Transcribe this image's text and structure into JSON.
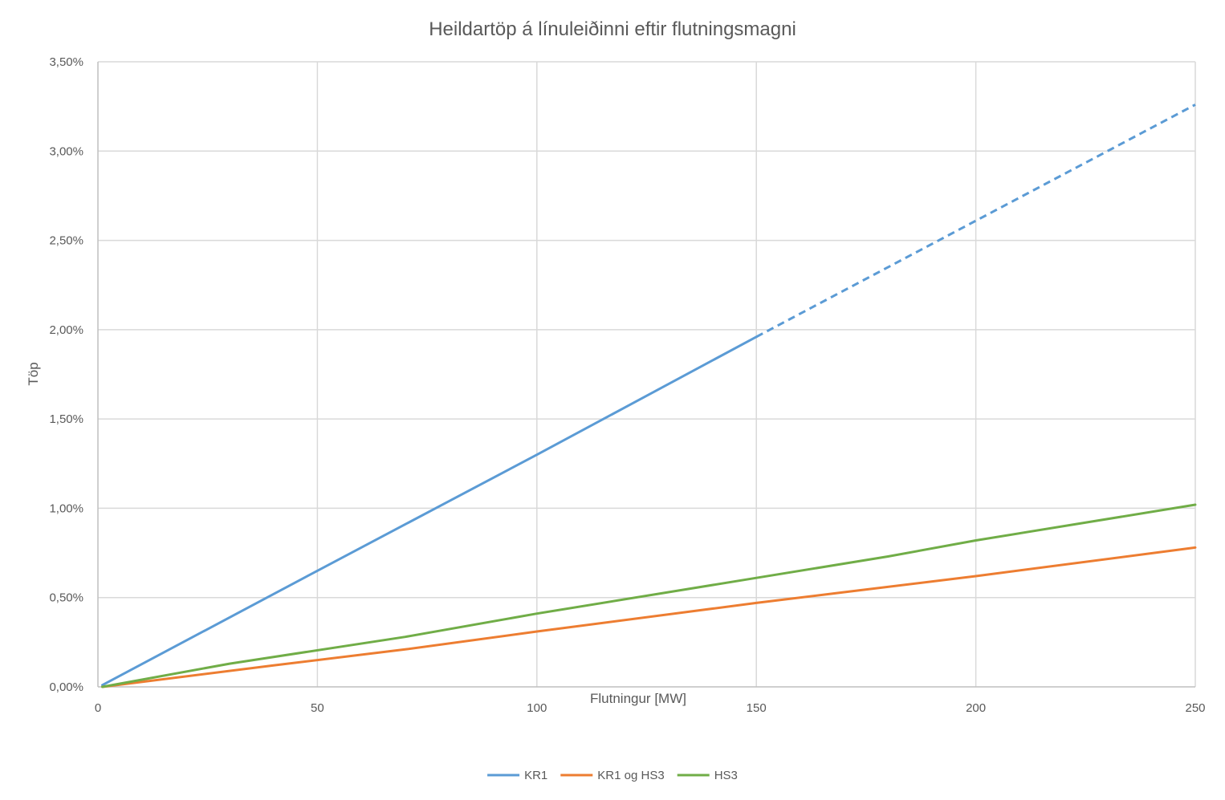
{
  "chart_data": {
    "type": "line",
    "title": "Heildartöp á línuleiðinni eftir flutningsmagni",
    "xlabel": "Flutningur [MW]",
    "ylabel": "Töp",
    "xlim": [
      0,
      250
    ],
    "ylim": [
      0,
      0.035
    ],
    "x_ticks": [
      0,
      50,
      100,
      150,
      200,
      250
    ],
    "x_tick_labels": [
      "0",
      "50",
      "100",
      "150",
      "200",
      "250"
    ],
    "y_ticks": [
      0,
      0.005,
      0.01,
      0.015,
      0.02,
      0.025,
      0.03,
      0.035
    ],
    "y_tick_labels": [
      "0,00%",
      "0,50%",
      "1,00%",
      "1,50%",
      "2,00%",
      "2,50%",
      "3,00%",
      "3,50%"
    ],
    "grid": true,
    "legend_position": "bottom",
    "series": [
      {
        "name": "KR1",
        "color": "#5b9bd5",
        "points": [
          [
            1,
            0.0001
          ],
          [
            50,
            0.0065
          ],
          [
            100,
            0.013
          ],
          [
            150,
            0.0196
          ]
        ],
        "extrapolated_points": [
          [
            150,
            0.0196
          ],
          [
            200,
            0.0261
          ],
          [
            250,
            0.0326
          ]
        ]
      },
      {
        "name": "KR1 og HS3",
        "color": "#ed7d31",
        "points": [
          [
            1,
            0.0
          ],
          [
            40,
            0.0012
          ],
          [
            70,
            0.0021
          ],
          [
            100,
            0.0031
          ],
          [
            150,
            0.0047
          ],
          [
            170,
            0.0053
          ],
          [
            200,
            0.0062
          ],
          [
            250,
            0.0078
          ]
        ]
      },
      {
        "name": "HS3",
        "color": "#70ad47",
        "points": [
          [
            1,
            0.0
          ],
          [
            30,
            0.0013
          ],
          [
            70,
            0.0028
          ],
          [
            100,
            0.0041
          ],
          [
            150,
            0.0061
          ],
          [
            180,
            0.0073
          ],
          [
            200,
            0.0082
          ],
          [
            250,
            0.0102
          ]
        ]
      }
    ]
  }
}
